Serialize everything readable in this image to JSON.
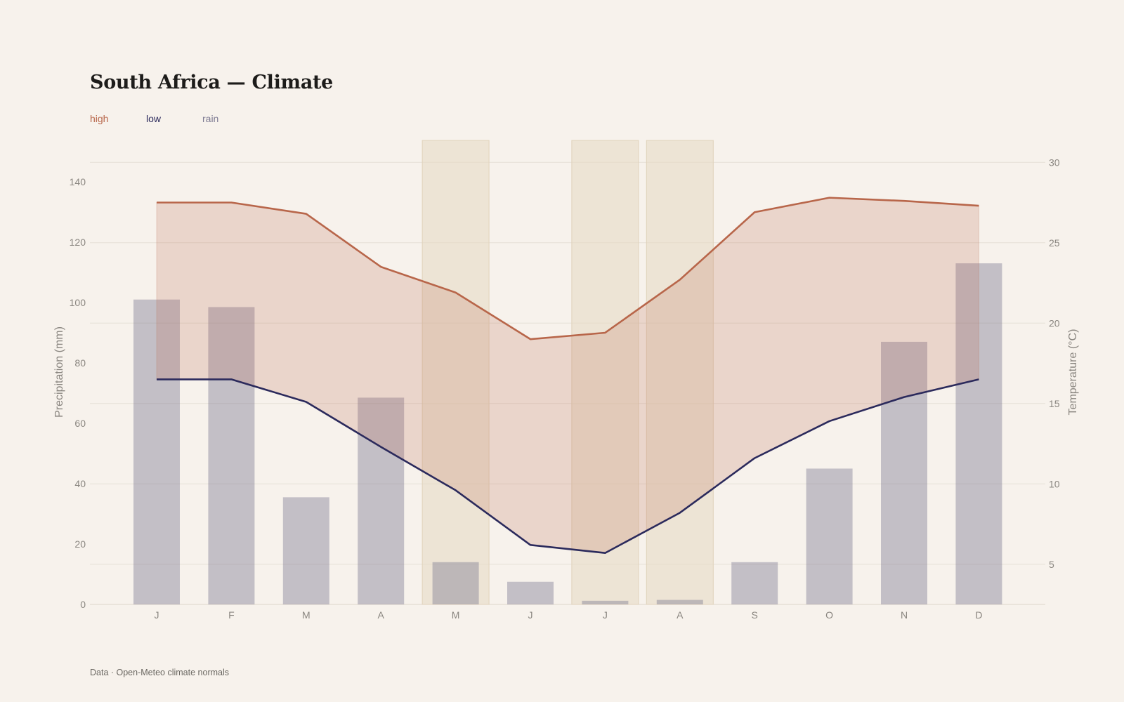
{
  "title": "South Africa — Climate",
  "footer": "Data · Open-Meteo climate normals",
  "legend": {
    "high": "high",
    "low": "low",
    "rain": "rain"
  },
  "colors": {
    "high": "#b8664a",
    "low": "#2b2a5c",
    "rain": "#7d7a92",
    "band_fill": "#b8664a",
    "highlight": "#e6d8c2",
    "grid": "#e6dfd6",
    "background": "#f7f2ec"
  },
  "chart_data": {
    "type": "bar+line",
    "categories": [
      "J",
      "F",
      "M",
      "A",
      "M",
      "J",
      "J",
      "A",
      "S",
      "O",
      "N",
      "D"
    ],
    "series": [
      {
        "name": "rain",
        "type": "bar",
        "axis": "left",
        "values": [
          101,
          98.5,
          35.5,
          68.5,
          14,
          7.5,
          1.2,
          1.5,
          14,
          45,
          87,
          113
        ]
      },
      {
        "name": "high",
        "type": "line",
        "axis": "right",
        "values": [
          27.5,
          27.5,
          26.8,
          23.5,
          21.9,
          19.0,
          19.4,
          22.7,
          26.9,
          27.8,
          27.6,
          27.3
        ]
      },
      {
        "name": "low",
        "type": "line",
        "axis": "right",
        "values": [
          16.5,
          16.5,
          15.1,
          12.3,
          9.6,
          6.2,
          5.7,
          8.2,
          11.6,
          13.9,
          15.4,
          16.5
        ]
      }
    ],
    "highlighted_months": [
      4,
      6,
      7
    ],
    "ylabel_left": "Precipitation (mm)",
    "ylabel_right": "Temperature (°C)",
    "ylim_left": [
      0,
      150
    ],
    "yticks_left": [
      0,
      20,
      40,
      60,
      80,
      100,
      120,
      140
    ],
    "ylim_right": [
      2.5,
      30
    ],
    "yticks_right": [
      5,
      10,
      15,
      20,
      25,
      30
    ],
    "grid": true,
    "legend_position": "top-left"
  }
}
